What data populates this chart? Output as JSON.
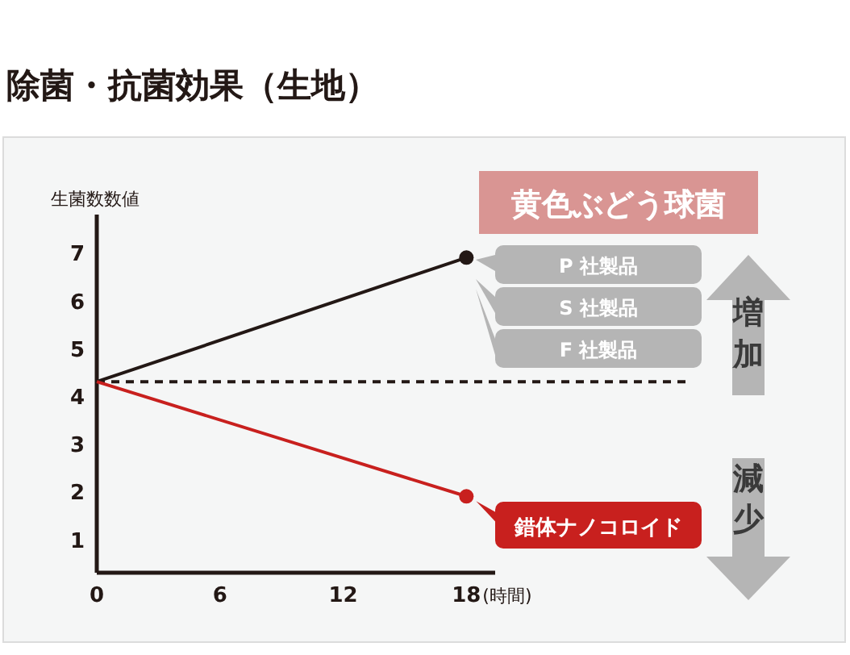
{
  "chart_data": {
    "type": "line",
    "title": "除菌・抗菌効果（生地）",
    "subtitle": "黄色ぶどう球菌",
    "ylabel": "生菌数数値",
    "xlabel": "(時間)",
    "x": [
      0,
      18
    ],
    "xlim": [
      0,
      19.4
    ],
    "xticks": [
      0,
      6,
      12,
      18
    ],
    "ylim": [
      0.3,
      7.8
    ],
    "yticks": [
      1,
      2,
      3,
      4,
      5,
      6,
      7
    ],
    "series": [
      {
        "color": "#231815",
        "values": [
          4.3,
          6.9
        ]
      },
      {
        "name": "錯体ナノコロイド",
        "color": "#c8201e",
        "values": [
          4.3,
          1.9
        ]
      }
    ],
    "ref_lines": [
      {
        "axis": "y",
        "value": 4.3,
        "line_style": "dashed",
        "color": "#231815"
      }
    ],
    "annotations": [
      "P 社製品",
      "S 社製品",
      "F 社製品",
      "増加",
      "減少"
    ],
    "marker": "circle",
    "line_style": "solid",
    "legend": "right"
  }
}
